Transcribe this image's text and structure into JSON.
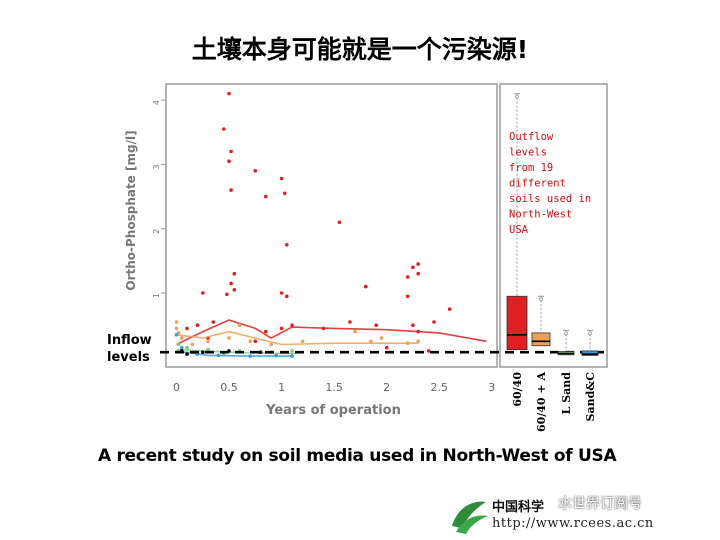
{
  "slide": {
    "title": "土壤本身可能就是一个污染源!",
    "caption": "A recent study on soil media used in North-West of USA",
    "logo_cn": "中国科学",
    "logo_url": "http://www.rcees.ac.cn",
    "watermark": "水世界订阅号"
  },
  "chart_data": [
    {
      "type": "scatter",
      "xlabel": "Years of operation",
      "ylabel": "Ortho-Phosphate [mg/l]",
      "xlim": [
        -0.1,
        3.05
      ],
      "ylim": [
        -0.15,
        4.25
      ],
      "x_ticks": [
        "0",
        "0.5",
        "1",
        "1.5",
        "2",
        "2.5",
        "3"
      ],
      "x_tick_values": [
        0,
        0.5,
        1,
        1.5,
        2,
        2.5,
        3
      ],
      "y_ticks": [
        "1",
        "2",
        "3",
        "4"
      ],
      "y_tick_values": [
        1,
        2,
        3,
        4
      ],
      "inflow_label": "Inflow\nlevels",
      "inflow_level": 0.08,
      "colors": {
        "red": "#e02020",
        "orange": "#f0a050",
        "green": "#7acc7a",
        "blue": "#3a9ad9",
        "dark": "#000000"
      },
      "series": [
        {
          "color": "red",
          "points": [
            [
              0.5,
              4.1
            ],
            [
              0.45,
              3.55
            ],
            [
              0.52,
              3.2
            ],
            [
              0.5,
              3.05
            ],
            [
              0.52,
              2.6
            ],
            [
              0.75,
              2.9
            ],
            [
              0.85,
              2.5
            ],
            [
              1.0,
              2.78
            ],
            [
              1.03,
              2.55
            ],
            [
              1.05,
              1.75
            ],
            [
              0.55,
              1.3
            ],
            [
              0.52,
              1.15
            ],
            [
              0.25,
              1.0
            ],
            [
              0.55,
              1.05
            ],
            [
              0.48,
              0.98
            ],
            [
              1.0,
              1.0
            ],
            [
              1.05,
              0.95
            ],
            [
              1.55,
              2.1
            ],
            [
              1.8,
              1.1
            ],
            [
              2.2,
              1.25
            ],
            [
              2.25,
              1.4
            ],
            [
              2.3,
              1.45
            ],
            [
              2.3,
              1.3
            ],
            [
              2.2,
              0.95
            ],
            [
              2.6,
              0.75
            ],
            [
              2.45,
              0.55
            ],
            [
              1.65,
              0.55
            ],
            [
              0.1,
              0.45
            ],
            [
              0.2,
              0.5
            ],
            [
              0.35,
              0.55
            ],
            [
              0.6,
              0.5
            ],
            [
              0.85,
              0.4
            ],
            [
              1.0,
              0.45
            ],
            [
              1.1,
              0.5
            ],
            [
              1.4,
              0.45
            ],
            [
              1.9,
              0.5
            ],
            [
              2.25,
              0.5
            ],
            [
              2.3,
              0.4
            ],
            [
              2.0,
              0.15
            ],
            [
              2.4,
              0.1
            ],
            [
              0.3,
              0.3
            ],
            [
              0.75,
              0.25
            ]
          ],
          "trend": [
            [
              0.0,
              0.2
            ],
            [
              0.25,
              0.4
            ],
            [
              0.5,
              0.58
            ],
            [
              0.75,
              0.45
            ],
            [
              0.9,
              0.3
            ],
            [
              1.1,
              0.47
            ],
            [
              1.5,
              0.45
            ],
            [
              2.0,
              0.43
            ],
            [
              2.5,
              0.38
            ],
            [
              2.95,
              0.25
            ]
          ]
        },
        {
          "color": "orange",
          "points": [
            [
              0.0,
              0.55
            ],
            [
              0.0,
              0.45
            ],
            [
              0.02,
              0.38
            ],
            [
              0.05,
              0.3
            ],
            [
              0.15,
              0.2
            ],
            [
              0.3,
              0.25
            ],
            [
              0.5,
              0.3
            ],
            [
              0.6,
              0.5
            ],
            [
              0.7,
              0.25
            ],
            [
              0.9,
              0.2
            ],
            [
              1.2,
              0.25
            ],
            [
              1.85,
              0.25
            ],
            [
              1.95,
              0.3
            ],
            [
              2.2,
              0.22
            ],
            [
              2.3,
              0.25
            ],
            [
              1.7,
              0.4
            ]
          ],
          "trend": [
            [
              0.0,
              0.35
            ],
            [
              0.25,
              0.3
            ],
            [
              0.5,
              0.4
            ],
            [
              0.75,
              0.3
            ],
            [
              1.0,
              0.2
            ],
            [
              1.5,
              0.22
            ],
            [
              2.0,
              0.22
            ],
            [
              2.3,
              0.22
            ]
          ]
        },
        {
          "color": "green",
          "points": [
            [
              0.02,
              0.2
            ],
            [
              0.1,
              0.15
            ],
            [
              0.3,
              0.12
            ],
            [
              0.6,
              0.1
            ],
            [
              0.9,
              0.08
            ],
            [
              1.1,
              0.1
            ],
            [
              0.45,
              0.05
            ]
          ],
          "trend": [
            [
              0.0,
              0.12
            ],
            [
              0.5,
              0.08
            ],
            [
              1.0,
              0.06
            ],
            [
              1.15,
              0.06
            ]
          ]
        },
        {
          "color": "blue",
          "points": [
            [
              0.0,
              0.35
            ],
            [
              0.05,
              0.15
            ],
            [
              0.2,
              0.05
            ],
            [
              0.4,
              0.03
            ],
            [
              0.7,
              0.02
            ],
            [
              0.95,
              0.03
            ],
            [
              1.1,
              0.02
            ]
          ],
          "trend": [
            [
              0.0,
              0.1
            ],
            [
              0.3,
              0.03
            ],
            [
              0.7,
              0.02
            ],
            [
              1.1,
              0.02
            ]
          ]
        },
        {
          "color": "dark",
          "points": [
            [
              0.05,
              0.1
            ],
            [
              0.1,
              0.05
            ],
            [
              0.5,
              0.1
            ],
            [
              0.8,
              0.08
            ],
            [
              0.25,
              0.08
            ]
          ],
          "trend": []
        }
      ]
    },
    {
      "type": "box",
      "annotation": "Outflow\nlevels\nfrom 19\ndifferent\nsoils used  in\nNorth-West\nUSA",
      "categories": [
        "60/40",
        "60/40 + A",
        "L Sand",
        "Sand&C"
      ],
      "boxes": [
        {
          "color": "#e02020",
          "q1": 0.12,
          "median": 0.35,
          "q3": 0.95,
          "whisker_high": 4.1,
          "whisker_low": 0.02
        },
        {
          "color": "#f0a050",
          "q1": 0.18,
          "median": 0.25,
          "q3": 0.38,
          "whisker_high": 0.95,
          "whisker_low": 0.05
        },
        {
          "color": "#7acc7a",
          "q1": 0.04,
          "median": 0.06,
          "q3": 0.09,
          "whisker_high": 0.42,
          "whisker_low": 0.01
        },
        {
          "color": "#3a9ad9",
          "q1": 0.03,
          "median": 0.05,
          "q3": 0.1,
          "whisker_high": 0.42,
          "whisker_low": 0.01
        }
      ]
    }
  ]
}
